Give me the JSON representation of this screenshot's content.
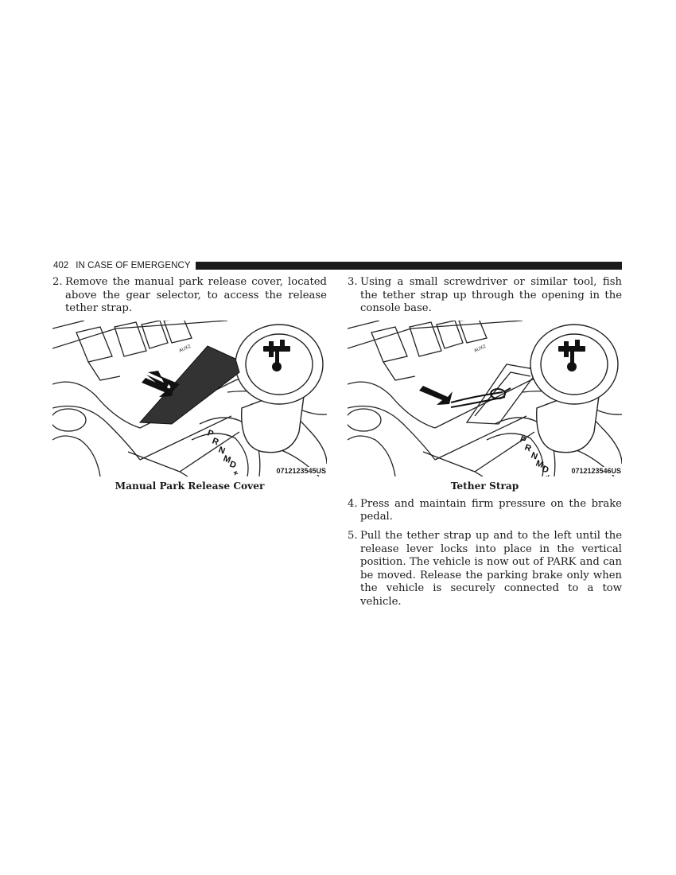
{
  "header": {
    "page_number": "402",
    "section_title": "IN CASE OF EMERGENCY"
  },
  "left_column": {
    "step": {
      "number": "2.",
      "text": "Remove the manual park release cover, located above the gear selector, to access the release tether strap."
    },
    "figure": {
      "code": "0712123545US",
      "caption": "Manual Park Release Cover",
      "gear_labels": [
        "P",
        "R",
        "N",
        "D",
        "M",
        "+"
      ],
      "switch_label": "AUX2"
    }
  },
  "right_column": {
    "step3": {
      "number": "3.",
      "text": "Using a small screwdriver or similar tool, fish the tether strap up through the opening in the console base."
    },
    "figure": {
      "code": "0712123546US",
      "caption": "Tether Strap",
      "gear_labels": [
        "P",
        "R",
        "N",
        "D",
        "M",
        "+"
      ],
      "switch_label": "AUX2"
    },
    "step4": {
      "number": "4.",
      "text": "Press and maintain firm pressure on the brake pedal."
    },
    "step5": {
      "number": "5.",
      "text": "Pull the tether strap up and to the left until the release lever locks into place in the vertical position. The vehicle is now out of PARK and can be moved. Release the parking brake only when the vehicle is securely connected to a tow vehicle."
    }
  }
}
